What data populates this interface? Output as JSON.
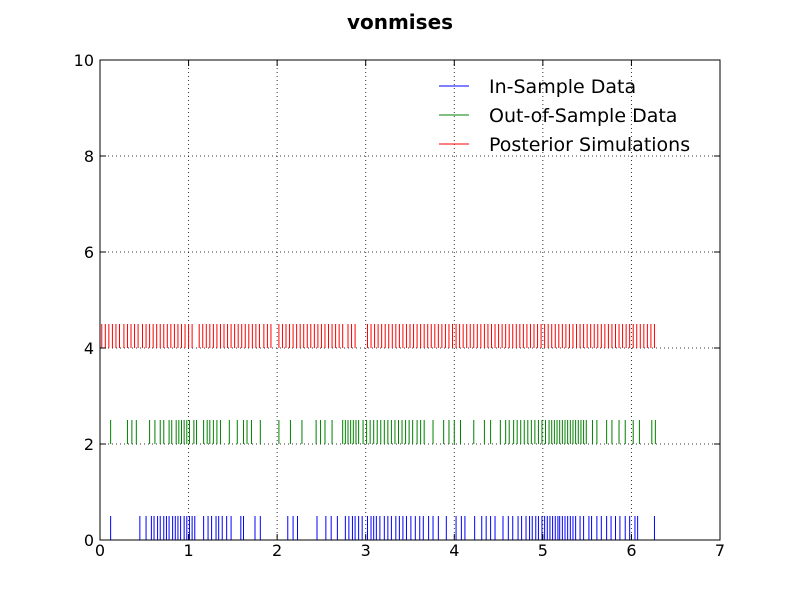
{
  "chart_data": {
    "type": "eventplot",
    "title": "vonmises",
    "xlabel": "",
    "ylabel": "",
    "xlim": [
      0,
      7
    ],
    "ylim": [
      0,
      10
    ],
    "xticks": [
      0,
      1,
      2,
      3,
      4,
      5,
      6,
      7
    ],
    "yticks": [
      0,
      2,
      4,
      6,
      8,
      10
    ],
    "grid": true,
    "legend_position": "top-right",
    "series": [
      {
        "name": "In-Sample Data",
        "color": "#0000ff",
        "y_base": 0,
        "height": 0.5,
        "x": [
          0.12,
          0.45,
          0.52,
          0.58,
          0.61,
          0.65,
          0.68,
          0.72,
          0.75,
          0.78,
          0.82,
          0.85,
          0.88,
          0.91,
          0.95,
          0.98,
          1.01,
          1.04,
          1.07,
          1.17,
          1.22,
          1.26,
          1.31,
          1.34,
          1.38,
          1.43,
          1.48,
          1.59,
          1.62,
          1.75,
          1.81,
          2.12,
          2.18,
          2.23,
          2.45,
          2.55,
          2.61,
          2.68,
          2.77,
          2.81,
          2.85,
          2.88,
          2.92,
          2.96,
          3.02,
          3.06,
          3.09,
          3.12,
          3.16,
          3.21,
          3.25,
          3.29,
          3.34,
          3.38,
          3.42,
          3.46,
          3.51,
          3.56,
          3.61,
          3.65,
          3.71,
          3.76,
          3.82,
          3.91,
          4.02,
          4.08,
          4.12,
          4.23,
          4.31,
          4.36,
          4.41,
          4.46,
          4.55,
          4.61,
          4.66,
          4.72,
          4.76,
          4.81,
          4.85,
          4.88,
          4.92,
          4.95,
          4.99,
          5.02,
          5.05,
          5.08,
          5.11,
          5.14,
          5.17,
          5.19,
          5.22,
          5.25,
          5.28,
          5.31,
          5.34,
          5.37,
          5.42,
          5.46,
          5.52,
          5.55,
          5.61,
          5.66,
          5.72,
          5.77,
          5.82,
          5.87,
          5.93,
          5.98,
          6.04,
          6.07,
          6.26
        ]
      },
      {
        "name": "Out-of-Sample Data",
        "color": "#008000",
        "y_base": 2,
        "height": 0.5,
        "x": [
          0.12,
          0.31,
          0.36,
          0.41,
          0.56,
          0.62,
          0.68,
          0.72,
          0.78,
          0.81,
          0.86,
          0.89,
          0.92,
          0.95,
          0.98,
          1.01,
          1.06,
          1.09,
          1.17,
          1.21,
          1.24,
          1.28,
          1.32,
          1.36,
          1.46,
          1.55,
          1.62,
          1.66,
          1.71,
          1.81,
          2.02,
          2.15,
          2.28,
          2.44,
          2.49,
          2.54,
          2.62,
          2.74,
          2.77,
          2.8,
          2.83,
          2.86,
          2.89,
          2.92,
          2.97,
          3.01,
          3.05,
          3.09,
          3.13,
          3.17,
          3.21,
          3.25,
          3.29,
          3.33,
          3.37,
          3.41,
          3.45,
          3.49,
          3.53,
          3.58,
          3.62,
          3.66,
          3.76,
          3.88,
          3.94,
          4.0,
          4.07,
          4.22,
          4.34,
          4.41,
          4.52,
          4.58,
          4.62,
          4.67,
          4.71,
          4.75,
          4.79,
          4.83,
          4.87,
          4.91,
          4.95,
          4.99,
          5.03,
          5.07,
          5.1,
          5.13,
          5.16,
          5.19,
          5.22,
          5.25,
          5.28,
          5.31,
          5.34,
          5.37,
          5.4,
          5.43,
          5.46,
          5.49,
          5.56,
          5.61,
          5.72,
          5.78,
          5.86,
          5.93,
          6.02,
          6.09,
          6.23,
          6.27
        ]
      },
      {
        "name": "Posterior Simulations",
        "color": "#ff0000",
        "y_base": 4,
        "height": 0.5,
        "x": [
          0.02,
          0.06,
          0.1,
          0.14,
          0.18,
          0.22,
          0.27,
          0.31,
          0.35,
          0.39,
          0.43,
          0.48,
          0.52,
          0.56,
          0.6,
          0.64,
          0.68,
          0.72,
          0.76,
          0.8,
          0.84,
          0.88,
          0.92,
          0.96,
          1.0,
          1.04,
          1.12,
          1.16,
          1.2,
          1.24,
          1.28,
          1.32,
          1.36,
          1.4,
          1.44,
          1.48,
          1.52,
          1.56,
          1.6,
          1.64,
          1.68,
          1.72,
          1.76,
          1.8,
          1.85,
          1.89,
          1.93,
          2.02,
          2.06,
          2.1,
          2.14,
          2.18,
          2.22,
          2.26,
          2.3,
          2.34,
          2.38,
          2.42,
          2.46,
          2.5,
          2.54,
          2.58,
          2.62,
          2.66,
          2.7,
          2.74,
          2.8,
          2.84,
          2.88,
          3.02,
          3.06,
          3.1,
          3.14,
          3.18,
          3.22,
          3.26,
          3.3,
          3.34,
          3.38,
          3.42,
          3.46,
          3.5,
          3.54,
          3.58,
          3.62,
          3.66,
          3.7,
          3.74,
          3.78,
          3.82,
          3.86,
          3.9,
          3.94,
          3.98,
          4.02,
          4.06,
          4.1,
          4.14,
          4.18,
          4.22,
          4.26,
          4.3,
          4.34,
          4.38,
          4.42,
          4.46,
          4.5,
          4.54,
          4.58,
          4.62,
          4.66,
          4.7,
          4.74,
          4.78,
          4.82,
          4.86,
          4.9,
          4.94,
          4.98,
          5.02,
          5.06,
          5.1,
          5.14,
          5.18,
          5.22,
          5.26,
          5.3,
          5.34,
          5.38,
          5.42,
          5.46,
          5.5,
          5.54,
          5.58,
          5.62,
          5.66,
          5.7,
          5.74,
          5.78,
          5.82,
          5.86,
          5.9,
          5.94,
          5.98,
          6.02,
          6.06,
          6.1,
          6.14,
          6.18,
          6.22,
          6.26
        ]
      }
    ]
  }
}
